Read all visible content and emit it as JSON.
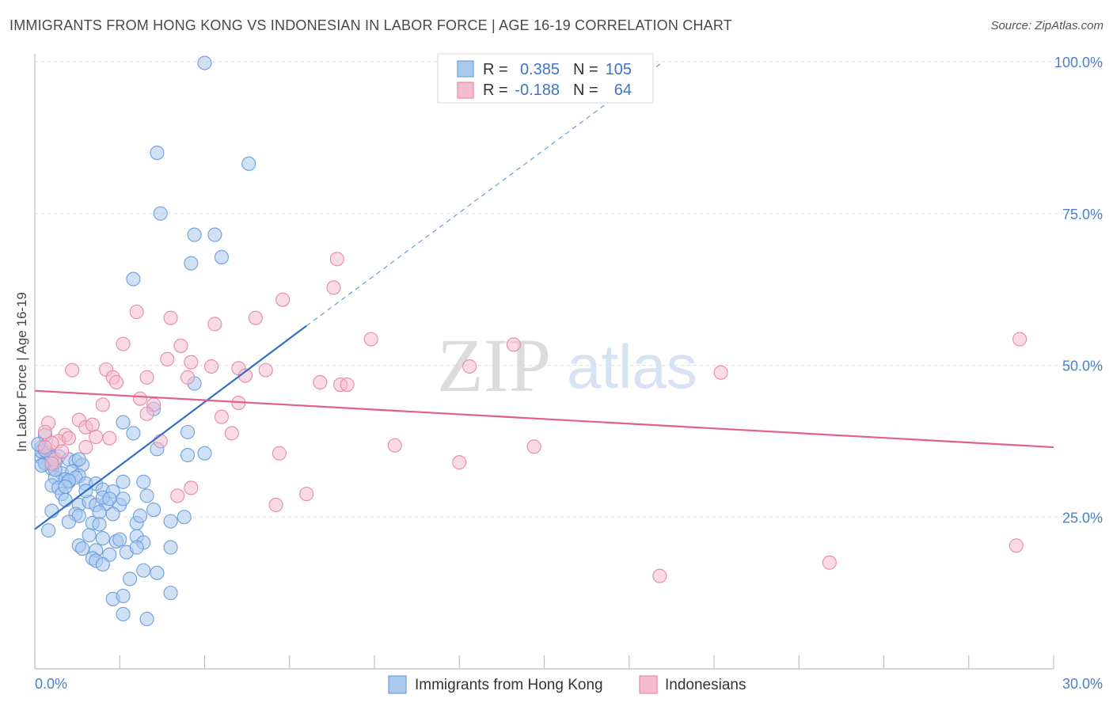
{
  "title": "IMMIGRANTS FROM HONG KONG VS INDONESIAN IN LABOR FORCE | AGE 16-19 CORRELATION CHART",
  "source": "Source: ZipAtlas.com",
  "watermark": {
    "zip": "ZIP",
    "atlas": "atlas"
  },
  "colors": {
    "blue_fill": "#a9c8ee",
    "blue_stroke": "#6c9fdc",
    "blue_line": "#3070c9",
    "pink_fill": "#f5bccd",
    "pink_stroke": "#e68aa8",
    "pink_line": "#e0608e",
    "tick_text": "#4a7fc9",
    "grid": "#dddddd"
  },
  "legend": {
    "rows": [
      {
        "r_label": "R =",
        "r_value": "0.385",
        "n_label": "N =",
        "n_value": "105"
      },
      {
        "r_label": "R =",
        "r_value": "-0.188",
        "n_label": "N =",
        "n_value": "64"
      }
    ]
  },
  "bottom_legend": [
    "Immigrants from Hong Kong",
    "Indonesians"
  ],
  "chart_data": {
    "type": "scatter",
    "title": "IMMIGRANTS FROM HONG KONG VS INDONESIAN IN LABOR FORCE | AGE 16-19 CORRELATION CHART",
    "xlabel": "",
    "ylabel": "In Labor Force | Age 16-19",
    "xlim": [
      0,
      30
    ],
    "ylim": [
      0,
      100
    ],
    "x_tick_labels": [
      "0.0%",
      "30.0%"
    ],
    "y_ticks": [
      25,
      50,
      75,
      100
    ],
    "y_tick_labels": [
      "25.0%",
      "50.0%",
      "75.0%",
      "100.0%"
    ],
    "grid": true,
    "legend_position": "top-center",
    "series": [
      {
        "name": "Immigrants from Hong Kong",
        "color": "#6c9fdc",
        "r": 0.385,
        "n": 105,
        "trend": {
          "x0": 0,
          "y0": 23,
          "x1": 8.0,
          "y1": 56.5,
          "dashed_to_x": 18.5,
          "dashed_to_y": 100
        },
        "points": [
          [
            5.0,
            99.8
          ],
          [
            3.6,
            85.0
          ],
          [
            6.3,
            83.2
          ],
          [
            3.7,
            75.0
          ],
          [
            4.7,
            71.5
          ],
          [
            5.3,
            71.5
          ],
          [
            5.5,
            67.8
          ],
          [
            4.6,
            66.8
          ],
          [
            2.9,
            64.2
          ],
          [
            3.5,
            42.8
          ],
          [
            4.7,
            47.0
          ],
          [
            2.6,
            40.6
          ],
          [
            2.9,
            38.8
          ],
          [
            4.5,
            39.0
          ],
          [
            0.3,
            38.5
          ],
          [
            0.2,
            36.5
          ],
          [
            0.4,
            35.2
          ],
          [
            0.2,
            34.8
          ],
          [
            0.4,
            34.2
          ],
          [
            0.3,
            34.0
          ],
          [
            0.5,
            33.0
          ],
          [
            0.7,
            35.0
          ],
          [
            1.0,
            34.5
          ],
          [
            1.2,
            34.2
          ],
          [
            1.4,
            33.6
          ],
          [
            0.8,
            32.2
          ],
          [
            1.1,
            32.5
          ],
          [
            1.3,
            31.8
          ],
          [
            0.6,
            31.5
          ],
          [
            0.9,
            31.2
          ],
          [
            1.0,
            30.8
          ],
          [
            1.2,
            31.5
          ],
          [
            0.5,
            30.2
          ],
          [
            0.7,
            29.8
          ],
          [
            0.8,
            28.8
          ],
          [
            1.5,
            30.5
          ],
          [
            1.8,
            30.5
          ],
          [
            2.0,
            29.5
          ],
          [
            2.3,
            29.2
          ],
          [
            3.2,
            30.8
          ],
          [
            2.6,
            30.8
          ],
          [
            0.9,
            27.8
          ],
          [
            1.3,
            27.0
          ],
          [
            1.6,
            27.5
          ],
          [
            1.8,
            27.0
          ],
          [
            2.1,
            27.2
          ],
          [
            2.5,
            27.0
          ],
          [
            2.0,
            28.2
          ],
          [
            2.2,
            28.0
          ],
          [
            3.3,
            28.5
          ],
          [
            3.5,
            26.2
          ],
          [
            0.5,
            26.0
          ],
          [
            1.2,
            25.5
          ],
          [
            1.3,
            25.2
          ],
          [
            1.9,
            25.8
          ],
          [
            2.3,
            25.5
          ],
          [
            1.0,
            24.2
          ],
          [
            1.7,
            24.0
          ],
          [
            1.9,
            23.8
          ],
          [
            3.0,
            24.0
          ],
          [
            3.1,
            25.2
          ],
          [
            4.0,
            24.3
          ],
          [
            4.4,
            25.0
          ],
          [
            0.4,
            22.8
          ],
          [
            1.6,
            22.0
          ],
          [
            2.0,
            21.5
          ],
          [
            2.4,
            21.0
          ],
          [
            2.5,
            21.3
          ],
          [
            3.0,
            21.8
          ],
          [
            3.2,
            20.8
          ],
          [
            1.3,
            20.3
          ],
          [
            1.4,
            19.8
          ],
          [
            1.8,
            19.5
          ],
          [
            2.2,
            18.8
          ],
          [
            2.7,
            19.2
          ],
          [
            3.0,
            20.0
          ],
          [
            4.0,
            20.0
          ],
          [
            1.7,
            18.2
          ],
          [
            1.8,
            17.8
          ],
          [
            2.0,
            17.2
          ],
          [
            3.2,
            16.2
          ],
          [
            3.6,
            15.8
          ],
          [
            2.8,
            14.8
          ],
          [
            4.0,
            12.5
          ],
          [
            2.3,
            11.5
          ],
          [
            2.6,
            12.0
          ],
          [
            2.6,
            9.0
          ],
          [
            3.3,
            8.2
          ],
          [
            4.5,
            35.2
          ],
          [
            5.0,
            35.5
          ],
          [
            3.6,
            36.2
          ],
          [
            1.3,
            34.5
          ],
          [
            0.6,
            34.0
          ],
          [
            0.3,
            33.8
          ],
          [
            0.4,
            35.5
          ],
          [
            0.2,
            35.8
          ],
          [
            0.5,
            34.8
          ],
          [
            0.6,
            32.8
          ],
          [
            1.0,
            31.0
          ],
          [
            1.5,
            29.3
          ],
          [
            0.3,
            36.0
          ],
          [
            0.1,
            37.0
          ],
          [
            0.2,
            33.5
          ],
          [
            0.9,
            30.0
          ],
          [
            2.6,
            28.0
          ]
        ]
      },
      {
        "name": "Indonesians",
        "color": "#e68aa8",
        "r": -0.188,
        "n": 64,
        "trend": {
          "x0": 0,
          "y0": 45.8,
          "x1": 30,
          "y1": 36.5
        },
        "points": [
          [
            8.9,
            67.5
          ],
          [
            8.8,
            62.8
          ],
          [
            7.3,
            60.8
          ],
          [
            3.0,
            58.8
          ],
          [
            4.0,
            57.8
          ],
          [
            6.5,
            57.8
          ],
          [
            5.3,
            56.8
          ],
          [
            9.9,
            54.3
          ],
          [
            14.1,
            53.4
          ],
          [
            2.6,
            53.5
          ],
          [
            4.3,
            53.2
          ],
          [
            29.0,
            54.3
          ],
          [
            3.9,
            51.0
          ],
          [
            4.6,
            50.5
          ],
          [
            5.2,
            49.8
          ],
          [
            6.0,
            49.5
          ],
          [
            6.8,
            49.2
          ],
          [
            12.8,
            49.8
          ],
          [
            20.2,
            48.8
          ],
          [
            1.1,
            49.2
          ],
          [
            2.1,
            49.3
          ],
          [
            2.3,
            48.0
          ],
          [
            2.4,
            47.2
          ],
          [
            3.3,
            48.0
          ],
          [
            4.5,
            48.0
          ],
          [
            6.2,
            48.3
          ],
          [
            8.4,
            47.2
          ],
          [
            9.0,
            46.8
          ],
          [
            9.2,
            46.8
          ],
          [
            3.1,
            44.5
          ],
          [
            2.0,
            43.5
          ],
          [
            3.5,
            43.5
          ],
          [
            6.0,
            43.8
          ],
          [
            3.3,
            42.0
          ],
          [
            5.5,
            41.5
          ],
          [
            1.3,
            41.0
          ],
          [
            0.4,
            40.5
          ],
          [
            1.5,
            39.8
          ],
          [
            1.7,
            40.2
          ],
          [
            0.9,
            38.5
          ],
          [
            1.8,
            38.2
          ],
          [
            5.8,
            38.8
          ],
          [
            3.7,
            37.5
          ],
          [
            0.7,
            37.5
          ],
          [
            0.5,
            37.2
          ],
          [
            1.5,
            36.5
          ],
          [
            0.3,
            36.5
          ],
          [
            10.6,
            36.8
          ],
          [
            14.7,
            36.6
          ],
          [
            7.2,
            35.5
          ],
          [
            12.5,
            34.0
          ],
          [
            0.6,
            34.5
          ],
          [
            0.5,
            33.8
          ],
          [
            4.6,
            29.8
          ],
          [
            4.2,
            28.5
          ],
          [
            8.0,
            28.8
          ],
          [
            7.1,
            27.0
          ],
          [
            1.0,
            38.0
          ],
          [
            0.3,
            39.0
          ],
          [
            0.8,
            35.8
          ],
          [
            18.4,
            15.3
          ],
          [
            23.4,
            17.5
          ],
          [
            28.9,
            20.3
          ],
          [
            2.2,
            38.0
          ]
        ]
      }
    ]
  }
}
